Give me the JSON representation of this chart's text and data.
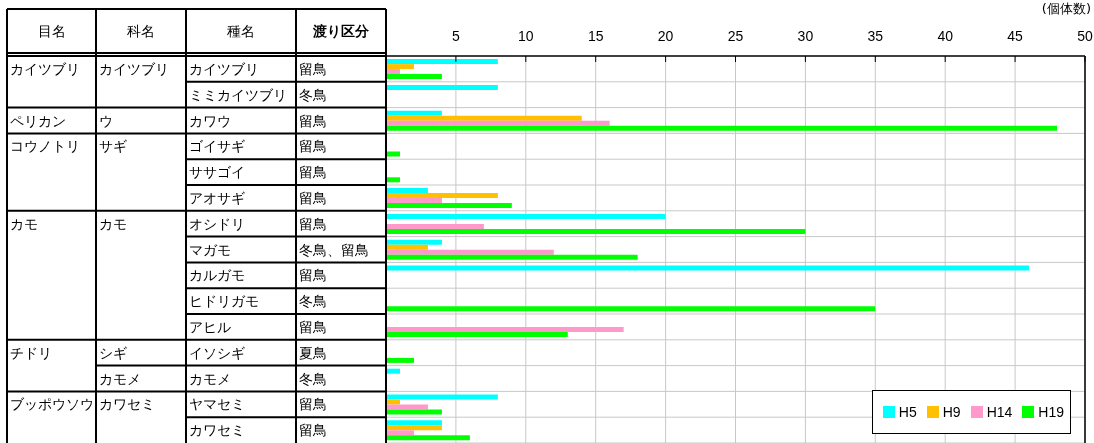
{
  "chart_data": {
    "type": "bar",
    "orientation": "horizontal",
    "xlabel": "(個体数)",
    "ylabel": "種名",
    "categories": [
      "カイツブリ",
      "ミミカイツブリ",
      "カワウ",
      "ゴイサギ",
      "ササゴイ",
      "アオサギ",
      "オシドリ",
      "マガモ",
      "カルガモ",
      "ヒドリガモ",
      "アヒル",
      "イソシギ",
      "カモメ",
      "ヤマセミ",
      "カワセミ"
    ],
    "series": [
      {
        "name": "H5",
        "color": "#00ffff",
        "values": [
          8,
          8,
          4,
          null,
          null,
          3,
          20,
          4,
          46,
          null,
          null,
          null,
          1,
          8,
          4
        ]
      },
      {
        "name": "H9",
        "color": "#ffc000",
        "values": [
          2,
          null,
          14,
          null,
          null,
          8,
          null,
          3,
          null,
          null,
          null,
          null,
          null,
          1,
          4
        ]
      },
      {
        "name": "H14",
        "color": "#ff99cc",
        "values": [
          1,
          null,
          16,
          null,
          null,
          4,
          7,
          12,
          null,
          null,
          17,
          null,
          null,
          3,
          2
        ]
      },
      {
        "name": "H19",
        "color": "#00ff00",
        "values": [
          4,
          null,
          48,
          1,
          1,
          9,
          30,
          18,
          null,
          35,
          13,
          2,
          null,
          4,
          6
        ]
      }
    ],
    "xlim": [
      0,
      50
    ],
    "xticks": [
      5,
      10,
      15,
      20,
      25,
      30,
      35,
      40,
      45,
      50
    ],
    "grid": true,
    "legend": "bottom right",
    "annotations": [
      "目名",
      "カイツブリ",
      "ペリカン",
      "コウノトリ",
      "カモ",
      "チドリ",
      "ブッポウソウ",
      "科名",
      "カイツブリ",
      "ウ",
      "サギ",
      "カモ",
      "シギ",
      "カモメ",
      "カワセミ",
      "渡り区分",
      "留鳥",
      "冬鳥",
      "留鳥",
      "留鳥",
      "留鳥",
      "留鳥",
      "留鳥",
      "冬鳥、留鳥",
      "留鳥",
      "冬鳥",
      "留鳥",
      "夏鳥",
      "冬鳥",
      "留鳥",
      "留鳥"
    ]
  }
}
